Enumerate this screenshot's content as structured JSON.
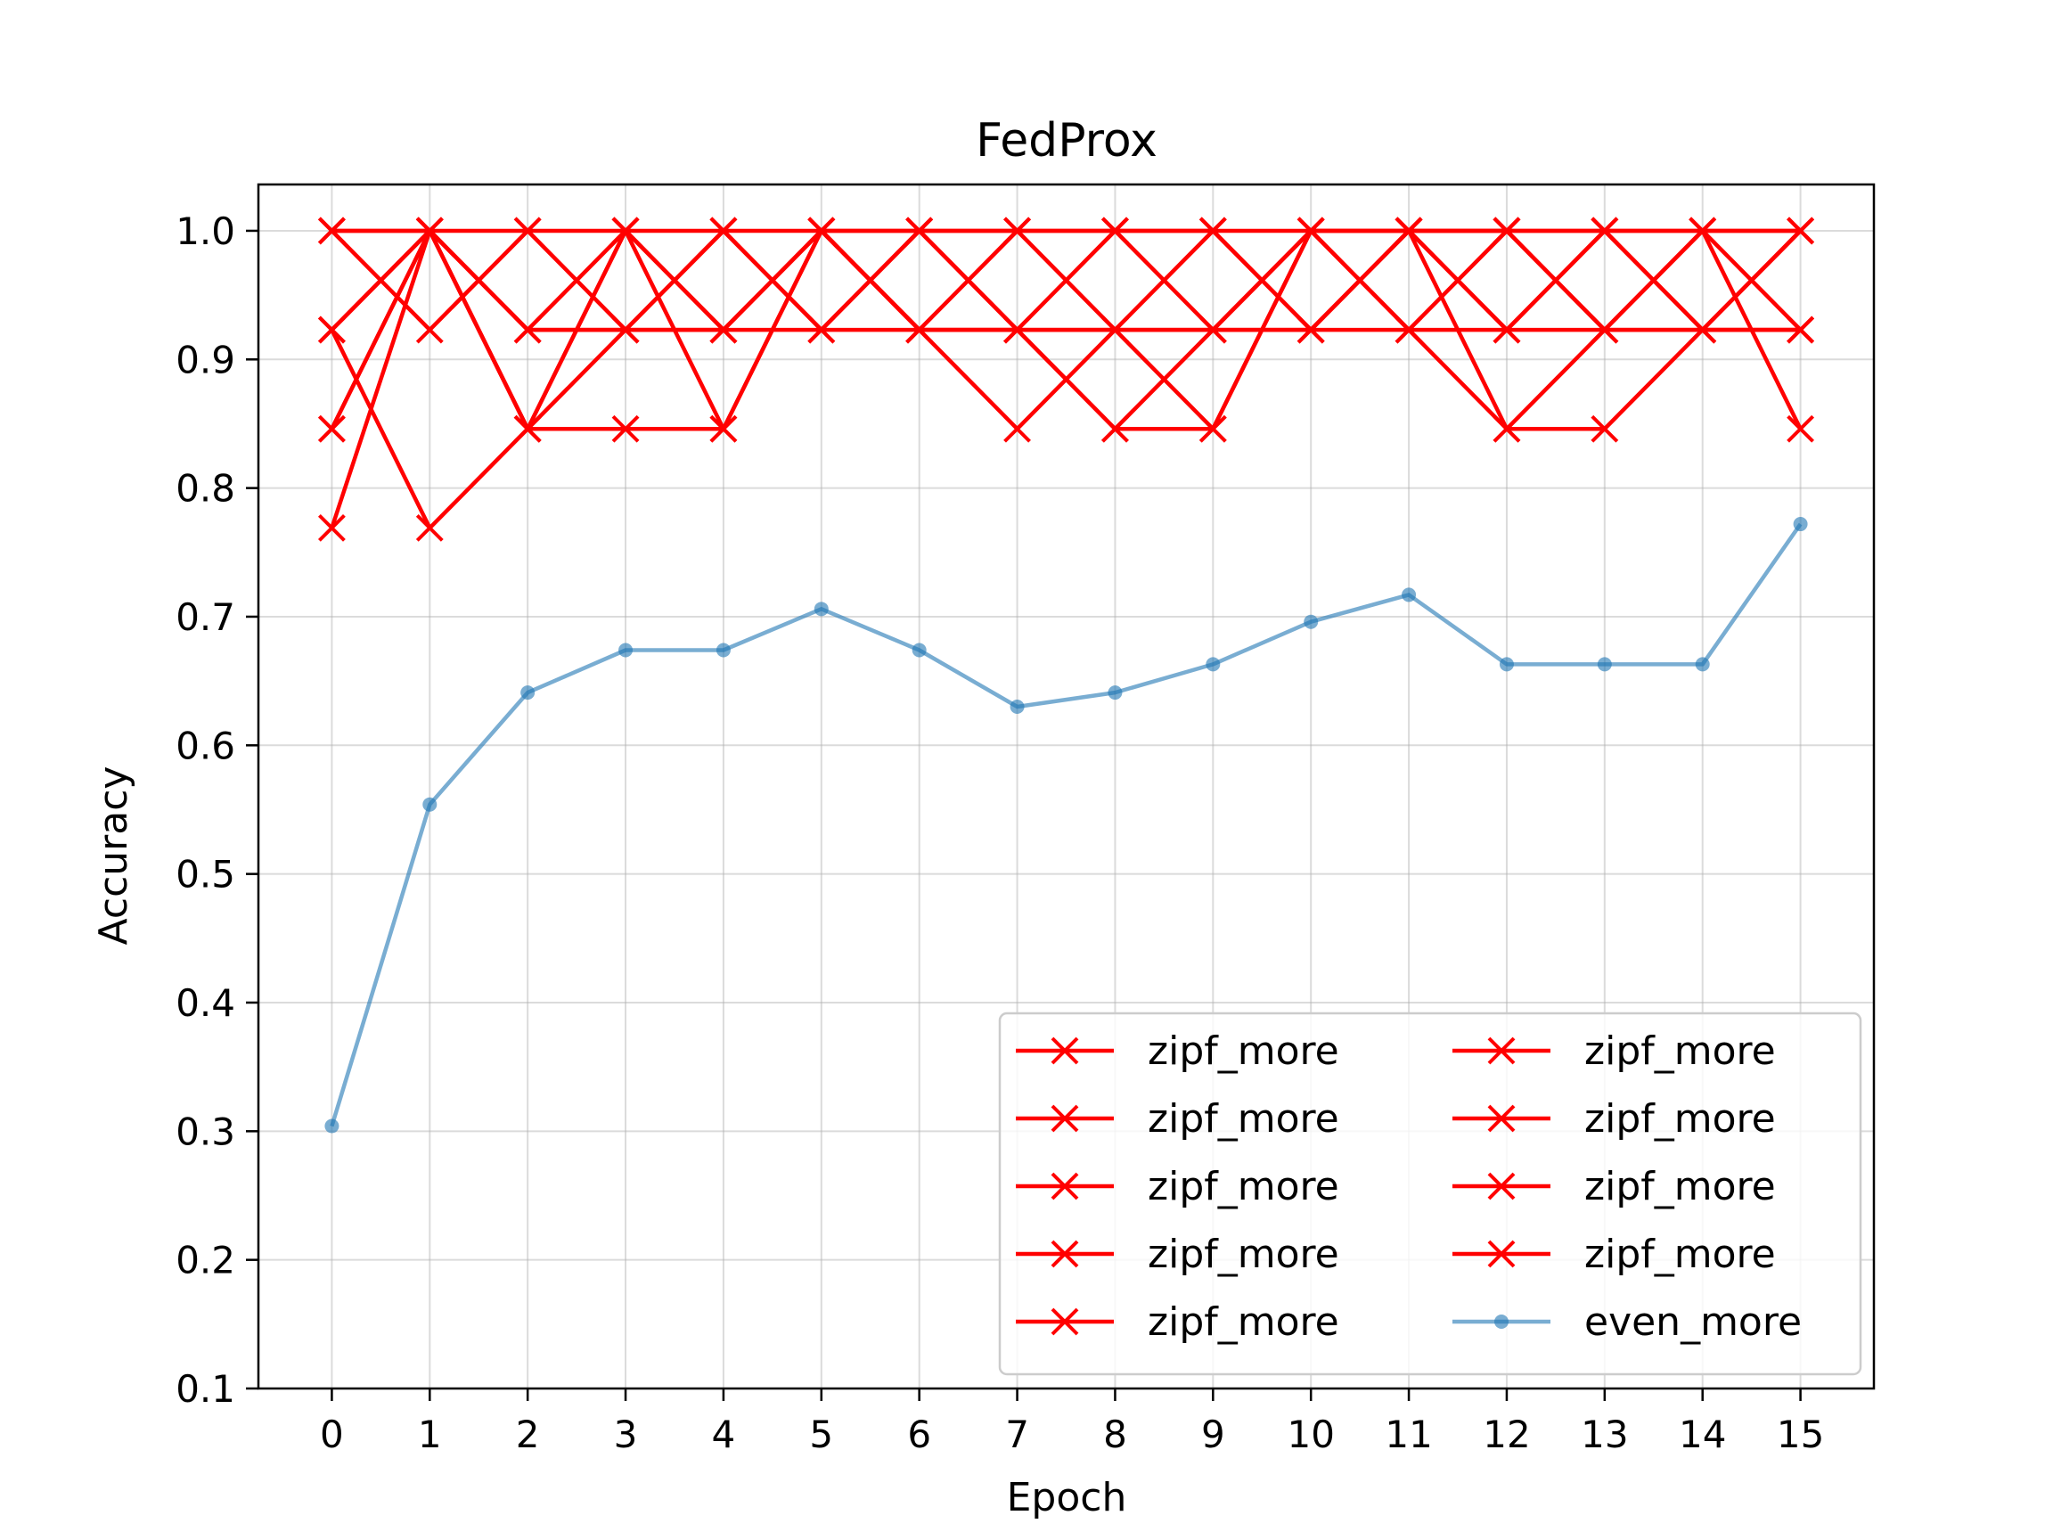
{
  "chart_data": {
    "type": "line",
    "title": "FedProx",
    "xlabel": "Epoch",
    "ylabel": "Accuracy",
    "x": [
      0,
      1,
      2,
      3,
      4,
      5,
      6,
      7,
      8,
      9,
      10,
      11,
      12,
      13,
      14,
      15
    ],
    "xlim": [
      -0.75,
      15.75
    ],
    "ylim": [
      0.1,
      1.036
    ],
    "yticks": [
      0.1,
      0.2,
      0.3,
      0.4,
      0.5,
      0.6,
      0.7,
      0.8,
      0.9,
      1.0
    ],
    "ytick_labels": [
      "0.1",
      "0.2",
      "0.3",
      "0.4",
      "0.5",
      "0.6",
      "0.7",
      "0.8",
      "0.9",
      "1.0"
    ],
    "xtick_labels": [
      "0",
      "1",
      "2",
      "3",
      "4",
      "5",
      "6",
      "7",
      "8",
      "9",
      "10",
      "11",
      "12",
      "13",
      "14",
      "15"
    ],
    "grid": true,
    "legend": {
      "placement": "lower-right",
      "columns": 2
    },
    "series": [
      {
        "name": "zipf_more",
        "color": "#ff0000",
        "marker": "x",
        "values": [
          1.0,
          1.0,
          0.923,
          0.923,
          0.923,
          0.923,
          0.923,
          0.923,
          0.923,
          0.923,
          0.923,
          0.923,
          0.923,
          0.923,
          0.923,
          0.923
        ]
      },
      {
        "name": "zipf_more",
        "color": "#ff0000",
        "marker": "x",
        "values": [
          0.923,
          1.0,
          1.0,
          1.0,
          1.0,
          1.0,
          1.0,
          1.0,
          1.0,
          1.0,
          1.0,
          1.0,
          1.0,
          1.0,
          1.0,
          1.0
        ]
      },
      {
        "name": "zipf_more",
        "color": "#ff0000",
        "marker": "x",
        "values": [
          0.769,
          1.0,
          0.846,
          0.846,
          0.846,
          1.0,
          0.923,
          0.846,
          0.923,
          1.0,
          0.923,
          1.0,
          0.846,
          0.846,
          0.923,
          1.0
        ]
      },
      {
        "name": "zipf_more",
        "color": "#ff0000",
        "marker": "x",
        "values": [
          0.846,
          1.0,
          0.846,
          1.0,
          0.923,
          1.0,
          0.923,
          0.923,
          0.846,
          0.846,
          1.0,
          1.0,
          0.923,
          1.0,
          1.0,
          0.846
        ]
      },
      {
        "name": "zipf_more",
        "color": "#ff0000",
        "marker": "x",
        "values": [
          0.923,
          0.769,
          0.846,
          0.923,
          1.0,
          0.923,
          1.0,
          0.923,
          1.0,
          0.923,
          1.0,
          0.923,
          1.0,
          0.923,
          1.0,
          0.923
        ]
      },
      {
        "name": "zipf_more",
        "color": "#ff0000",
        "marker": "x",
        "values": [
          1.0,
          0.923,
          1.0,
          0.923,
          1.0,
          0.923,
          1.0,
          0.923,
          0.846,
          0.923,
          0.923,
          1.0,
          0.923,
          1.0,
          0.923,
          0.923
        ]
      },
      {
        "name": "zipf_more",
        "color": "#ff0000",
        "marker": "x",
        "values": [
          1.0,
          1.0,
          0.923,
          1.0,
          0.923,
          1.0,
          0.923,
          1.0,
          1.0,
          1.0,
          0.923,
          1.0,
          1.0,
          0.923,
          0.923,
          1.0
        ]
      },
      {
        "name": "zipf_more",
        "color": "#ff0000",
        "marker": "x",
        "values": [
          0.923,
          1.0,
          0.846,
          1.0,
          0.846,
          1.0,
          1.0,
          1.0,
          0.923,
          0.923,
          1.0,
          0.923,
          0.846,
          0.923,
          1.0,
          1.0
        ]
      },
      {
        "name": "zipf_more",
        "color": "#ff0000",
        "marker": "x",
        "values": [
          0.846,
          1.0,
          0.923,
          0.923,
          0.923,
          1.0,
          0.923,
          0.923,
          0.923,
          0.846,
          1.0,
          1.0,
          1.0,
          1.0,
          0.923,
          0.923
        ]
      },
      {
        "name": "even_more",
        "color": "#1f77b4",
        "opacity": 0.6,
        "marker": "o",
        "values": [
          0.304,
          0.554,
          0.641,
          0.674,
          0.674,
          0.706,
          0.674,
          0.63,
          0.641,
          0.663,
          0.696,
          0.717,
          0.663,
          0.663,
          0.663,
          0.772
        ]
      }
    ]
  }
}
